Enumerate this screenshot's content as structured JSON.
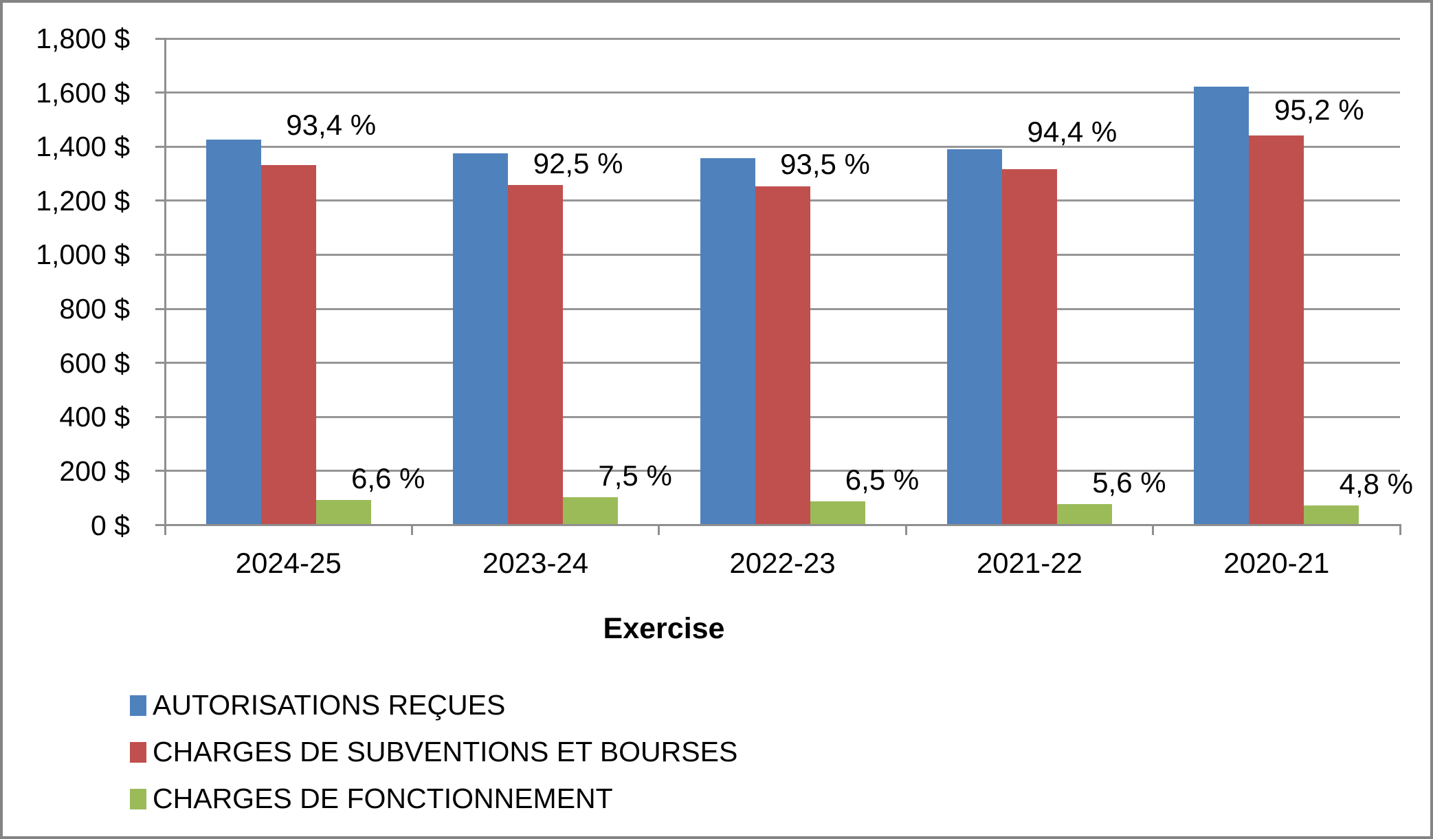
{
  "chart_data": {
    "type": "bar",
    "title": "",
    "xlabel": "Exercise",
    "ylabel": "",
    "grid": true,
    "legend_position": "bottom-left",
    "categories": [
      "2024-25",
      "2023-24",
      "2022-23",
      "2021-22",
      "2020-21"
    ],
    "series": [
      {
        "name": "AUTORISATIONS REÇUES",
        "color": "#4F81BD",
        "values": [
          1425,
          1374,
          1357,
          1391,
          1622
        ]
      },
      {
        "name": "CHARGES DE SUBVENTIONS ET BOURSES",
        "color": "#C0504D",
        "values": [
          1331,
          1258,
          1254,
          1317,
          1441
        ],
        "data_labels": [
          "93,4 %",
          "92,5 %",
          "93,5 %",
          "94,4 %",
          "95,2 %"
        ]
      },
      {
        "name": "CHARGES DE FONCTIONNEMENT",
        "color": "#9BBB59",
        "values": [
          94,
          102,
          87,
          78,
          73
        ],
        "data_labels": [
          "6,6 %",
          "7,5 %",
          "6,5 %",
          "5,6 %",
          "4,8 %"
        ]
      }
    ],
    "y_axis": {
      "min": 0,
      "max": 1800,
      "step": 200,
      "tick_labels": [
        "0 $",
        "200 $",
        "400 $",
        "600 $",
        "800 $",
        "1,000 $",
        "1,200 $",
        "1,400 $",
        "1,600 $",
        "1,800 $"
      ]
    }
  }
}
